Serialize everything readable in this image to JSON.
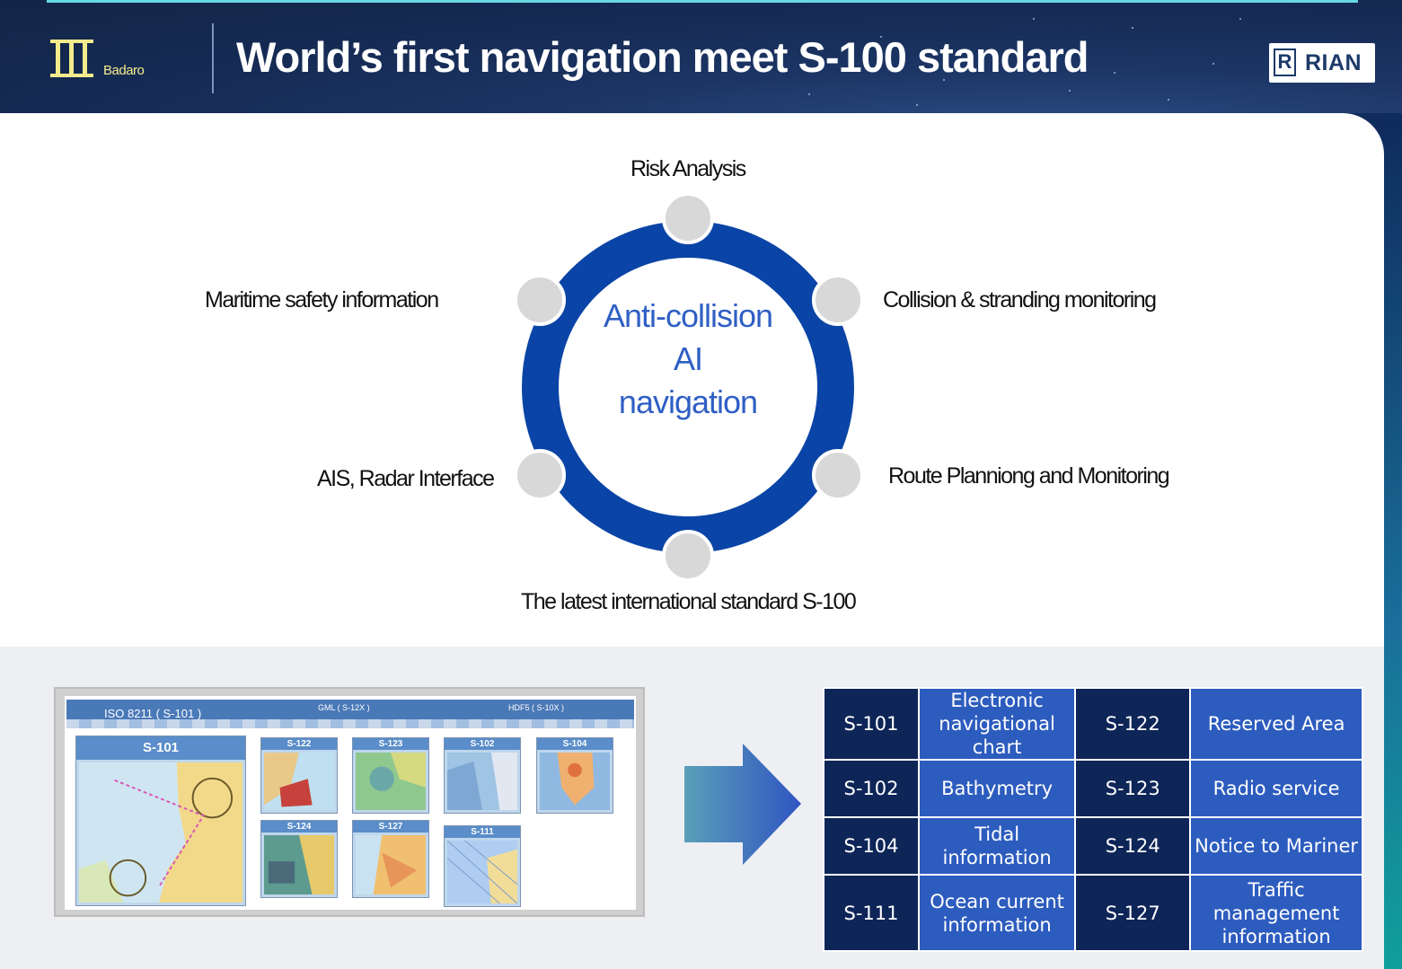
{
  "header": {
    "logo_text": "Badaro",
    "title": "World’s first navigation meet S-100 standard",
    "brand": "RIAN"
  },
  "diagram": {
    "center": [
      "Anti-collision",
      "AI",
      "navigation"
    ],
    "labels": {
      "top": "Risk Analysis",
      "upper_right": "Collision & stranding monitoring",
      "lower_right": "Route Planniong and Monitoring",
      "bottom": "The latest international standard S-100",
      "lower_left": "AIS, Radar Interface",
      "upper_left": "Maritime safety information"
    },
    "colors": {
      "ring": "#0a44a6",
      "node": "#d8d8d8",
      "center_text": "#2f5fc4"
    }
  },
  "standards_image": {
    "bands": [
      "ISO 8211 ( S-101 )",
      "GML ( S-12X )",
      "HDF5 ( S-10X )"
    ],
    "cards": [
      "S-101",
      "S-122",
      "S-123",
      "S-102",
      "S-104",
      "S-124",
      "S-127",
      "S-111"
    ]
  },
  "standards_table": {
    "rows": [
      {
        "code1": "S-101",
        "desc1": "Electronic navigational chart",
        "code2": "S-122",
        "desc2": "Reserved Area"
      },
      {
        "code1": "S-102",
        "desc1": "Bathymetry",
        "code2": "S-123",
        "desc2": "Radio service"
      },
      {
        "code1": "S-104",
        "desc1": "Tidal information",
        "code2": "S-124",
        "desc2": "Notice to Mariner"
      },
      {
        "code1": "S-111",
        "desc1": "Ocean current information",
        "code2": "S-127",
        "desc2": "Traffic management information"
      }
    ],
    "colors": {
      "code_bg": "#0e2558",
      "desc_bg": "#2d5cbf"
    }
  }
}
